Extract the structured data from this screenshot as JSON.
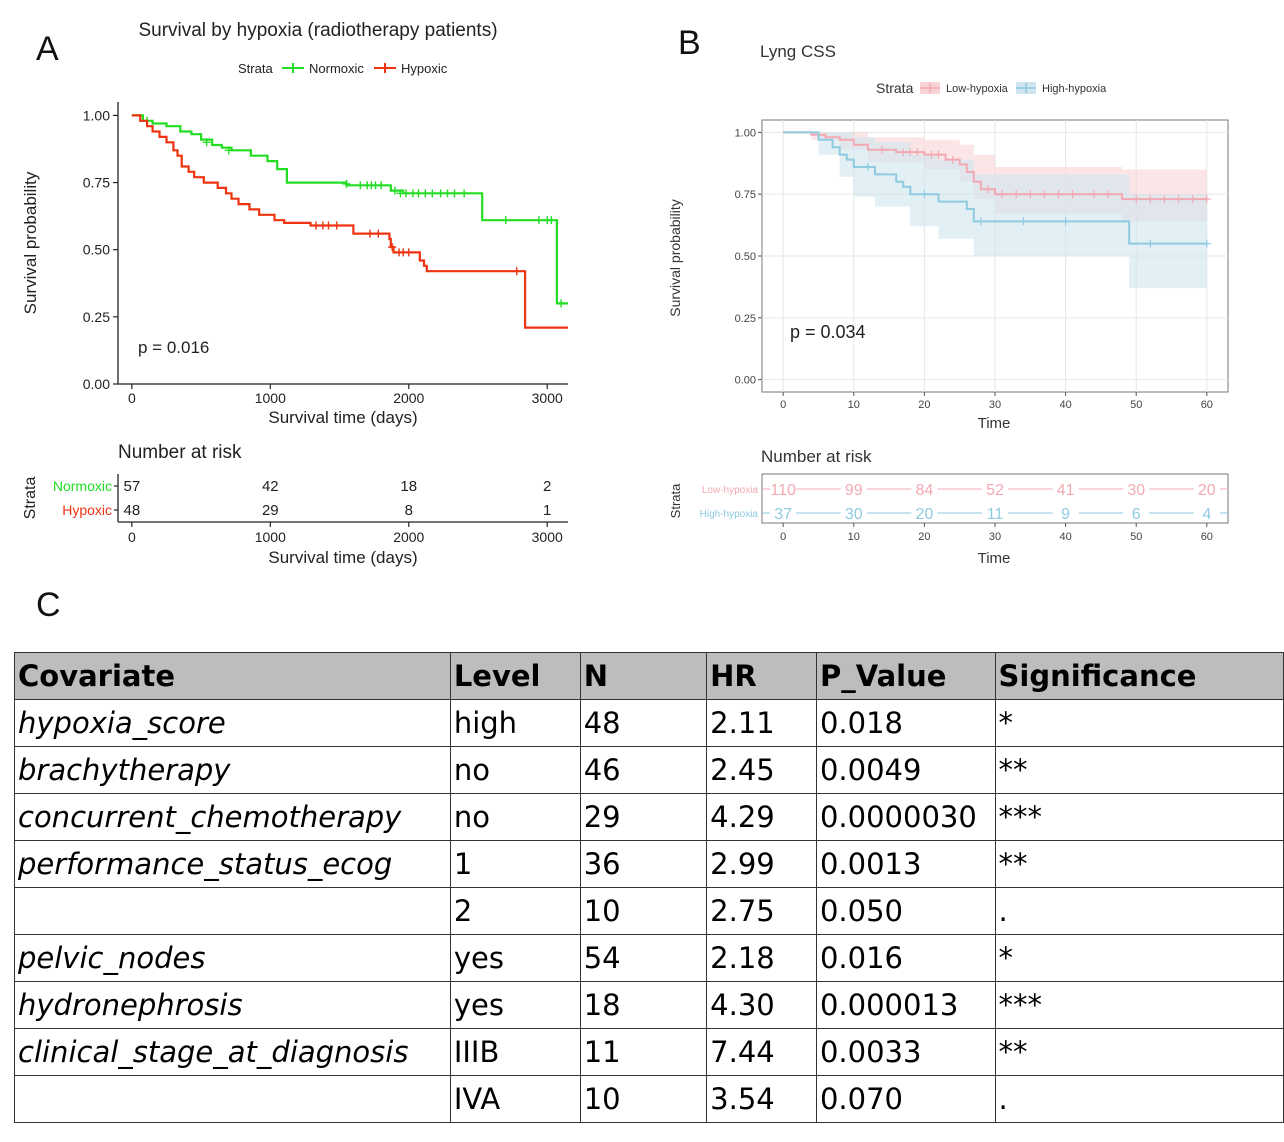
{
  "panels": {
    "a": "A",
    "b": "B",
    "c": "C"
  },
  "colors": {
    "normoxic": "#22dd22",
    "hypoxic": "#ee3311",
    "low_hypoxia": "#f3a9b2",
    "high_hypoxia": "#8ecae0",
    "low_band": "#f8d3d6",
    "high_band": "#cfe6f0"
  },
  "chart_data": [
    {
      "type": "line",
      "id": "A",
      "title": "Survival by hypoxia (radiotherapy patients)",
      "legend_title": "Strata",
      "legend_position": "top",
      "xlabel": "Survival time (days)",
      "ylabel": "Survival probability",
      "xlim": [
        -100,
        3150
      ],
      "ylim": [
        0,
        1.05
      ],
      "x_ticks": [
        0,
        1000,
        2000,
        3000
      ],
      "x_tick_labels": [
        "0",
        "1000",
        "2000",
        "3000"
      ],
      "y_ticks": [
        0,
        0.25,
        0.5,
        0.75,
        1
      ],
      "y_tick_labels": [
        "0.00",
        "0.25",
        "0.50",
        "0.75",
        "1.00"
      ],
      "annotation": "p = 0.016",
      "series": [
        {
          "name": "Normoxic",
          "color": "#22dd22",
          "steps": [
            [
              0,
              1.0
            ],
            [
              80,
              0.98
            ],
            [
              150,
              0.97
            ],
            [
              250,
              0.96
            ],
            [
              350,
              0.94
            ],
            [
              430,
              0.93
            ],
            [
              500,
              0.91
            ],
            [
              580,
              0.89
            ],
            [
              650,
              0.88
            ],
            [
              720,
              0.87
            ],
            [
              860,
              0.85
            ],
            [
              980,
              0.83
            ],
            [
              1050,
              0.8
            ],
            [
              1120,
              0.78
            ],
            [
              1120,
              0.75
            ],
            [
              1550,
              0.75
            ],
            [
              1550,
              0.74
            ],
            [
              1830,
              0.74
            ],
            [
              1870,
              0.72
            ],
            [
              1960,
              0.71
            ],
            [
              2530,
              0.71
            ],
            [
              2530,
              0.61
            ],
            [
              3040,
              0.61
            ],
            [
              3070,
              0.3
            ],
            [
              3150,
              0.3
            ]
          ],
          "censors": [
            [
              110,
              0.98
            ],
            [
              540,
              0.9
            ],
            [
              700,
              0.87
            ],
            [
              1550,
              0.745
            ],
            [
              1650,
              0.74
            ],
            [
              1700,
              0.74
            ],
            [
              1730,
              0.74
            ],
            [
              1760,
              0.74
            ],
            [
              1800,
              0.74
            ],
            [
              1900,
              0.72
            ],
            [
              1940,
              0.71
            ],
            [
              1980,
              0.71
            ],
            [
              2030,
              0.71
            ],
            [
              2070,
              0.71
            ],
            [
              2120,
              0.71
            ],
            [
              2170,
              0.71
            ],
            [
              2230,
              0.71
            ],
            [
              2280,
              0.71
            ],
            [
              2330,
              0.71
            ],
            [
              2400,
              0.71
            ],
            [
              2700,
              0.61
            ],
            [
              2940,
              0.61
            ],
            [
              3000,
              0.61
            ],
            [
              3030,
              0.61
            ],
            [
              3100,
              0.3
            ]
          ]
        },
        {
          "name": "Hypoxic",
          "color": "#ee3311",
          "steps": [
            [
              0,
              1.0
            ],
            [
              60,
              0.98
            ],
            [
              110,
              0.96
            ],
            [
              150,
              0.94
            ],
            [
              200,
              0.92
            ],
            [
              250,
              0.9
            ],
            [
              300,
              0.87
            ],
            [
              330,
              0.85
            ],
            [
              360,
              0.81
            ],
            [
              410,
              0.79
            ],
            [
              450,
              0.77
            ],
            [
              520,
              0.75
            ],
            [
              620,
              0.73
            ],
            [
              680,
              0.71
            ],
            [
              720,
              0.69
            ],
            [
              770,
              0.67
            ],
            [
              850,
              0.65
            ],
            [
              920,
              0.63
            ],
            [
              1030,
              0.61
            ],
            [
              1100,
              0.6
            ],
            [
              1270,
              0.6
            ],
            [
              1290,
              0.59
            ],
            [
              1560,
              0.59
            ],
            [
              1600,
              0.56
            ],
            [
              1830,
              0.56
            ],
            [
              1860,
              0.54
            ],
            [
              1870,
              0.51
            ],
            [
              1890,
              0.49
            ],
            [
              2050,
              0.49
            ],
            [
              2080,
              0.46
            ],
            [
              2110,
              0.44
            ],
            [
              2130,
              0.42
            ],
            [
              2820,
              0.42
            ],
            [
              2840,
              0.21
            ],
            [
              3150,
              0.21
            ]
          ],
          "censors": [
            [
              1330,
              0.59
            ],
            [
              1380,
              0.59
            ],
            [
              1420,
              0.59
            ],
            [
              1480,
              0.59
            ],
            [
              1720,
              0.56
            ],
            [
              1780,
              0.56
            ],
            [
              1880,
              0.51
            ],
            [
              1930,
              0.49
            ],
            [
              1960,
              0.49
            ],
            [
              2000,
              0.49
            ],
            [
              2780,
              0.42
            ]
          ]
        }
      ],
      "risk_table": {
        "title": "Number at risk",
        "ylabel": "Strata",
        "xlabel": "Survival time (days)",
        "times": [
          0,
          1000,
          2000,
          3000
        ],
        "rows": [
          {
            "name": "Normoxic",
            "counts": [
              "57",
              "42",
              "18",
              "2"
            ]
          },
          {
            "name": "Hypoxic",
            "counts": [
              "48",
              "29",
              "8",
              "1"
            ]
          }
        ]
      }
    },
    {
      "type": "line",
      "id": "B",
      "title": "Lyng CSS",
      "legend_title": "Strata",
      "legend_position": "top",
      "xlabel": "Time",
      "ylabel": "Survival probability",
      "xlim": [
        -3,
        63
      ],
      "ylim": [
        -0.05,
        1.05
      ],
      "x_ticks": [
        0,
        10,
        20,
        30,
        40,
        50,
        60
      ],
      "x_tick_labels": [
        "0",
        "10",
        "20",
        "30",
        "40",
        "50",
        "60"
      ],
      "y_ticks": [
        0,
        0.25,
        0.5,
        0.75,
        1
      ],
      "y_tick_labels": [
        "0.00",
        "0.25",
        "0.50",
        "0.75",
        "1.00"
      ],
      "grid": true,
      "annotation": "p = 0.034",
      "series": [
        {
          "name": "Low-hypoxia",
          "color": "#f3a9b2",
          "band_color": "#f8d3d6",
          "steps": [
            [
              0,
              1.0
            ],
            [
              3,
              1.0
            ],
            [
              4,
              0.99
            ],
            [
              6,
              0.98
            ],
            [
              8,
              0.97
            ],
            [
              10,
              0.95
            ],
            [
              12,
              0.93
            ],
            [
              16,
              0.92
            ],
            [
              20,
              0.91
            ],
            [
              23,
              0.89
            ],
            [
              25,
              0.87
            ],
            [
              26,
              0.84
            ],
            [
              27,
              0.8
            ],
            [
              28,
              0.77
            ],
            [
              30,
              0.75
            ],
            [
              47,
              0.75
            ],
            [
              48,
              0.73
            ],
            [
              60,
              0.73
            ]
          ],
          "upper": [
            [
              0,
              1.0
            ],
            [
              4,
              1.0
            ],
            [
              8,
              1.0
            ],
            [
              12,
              0.98
            ],
            [
              20,
              0.97
            ],
            [
              25,
              0.95
            ],
            [
              27,
              0.91
            ],
            [
              30,
              0.86
            ],
            [
              48,
              0.85
            ],
            [
              60,
              0.84
            ]
          ],
          "lower": [
            [
              0,
              1.0
            ],
            [
              4,
              0.97
            ],
            [
              8,
              0.93
            ],
            [
              12,
              0.88
            ],
            [
              20,
              0.85
            ],
            [
              25,
              0.8
            ],
            [
              27,
              0.73
            ],
            [
              30,
              0.67
            ],
            [
              48,
              0.64
            ],
            [
              60,
              0.62
            ]
          ],
          "censors": [
            [
              14,
              0.93
            ],
            [
              17,
              0.92
            ],
            [
              18,
              0.92
            ],
            [
              19,
              0.92
            ],
            [
              21,
              0.91
            ],
            [
              22,
              0.91
            ],
            [
              24,
              0.89
            ],
            [
              29,
              0.77
            ],
            [
              31,
              0.75
            ],
            [
              33,
              0.75
            ],
            [
              35,
              0.75
            ],
            [
              37,
              0.75
            ],
            [
              39,
              0.75
            ],
            [
              41,
              0.75
            ],
            [
              44,
              0.75
            ],
            [
              46,
              0.75
            ],
            [
              50,
              0.73
            ],
            [
              52,
              0.73
            ],
            [
              54,
              0.73
            ],
            [
              56,
              0.73
            ],
            [
              58,
              0.73
            ],
            [
              60,
              0.73
            ]
          ]
        },
        {
          "name": "High-hypoxia",
          "color": "#8ecae0",
          "band_color": "#cfe6f0",
          "steps": [
            [
              0,
              1.0
            ],
            [
              3,
              1.0
            ],
            [
              5,
              0.97
            ],
            [
              7,
              0.94
            ],
            [
              8,
              0.91
            ],
            [
              9,
              0.89
            ],
            [
              10,
              0.86
            ],
            [
              13,
              0.83
            ],
            [
              16,
              0.8
            ],
            [
              17,
              0.78
            ],
            [
              18,
              0.75
            ],
            [
              22,
              0.72
            ],
            [
              26,
              0.69
            ],
            [
              27,
              0.64
            ],
            [
              48,
              0.64
            ],
            [
              49,
              0.55
            ],
            [
              60,
              0.55
            ]
          ],
          "upper": [
            [
              0,
              1.0
            ],
            [
              5,
              1.0
            ],
            [
              8,
              1.0
            ],
            [
              10,
              0.98
            ],
            [
              13,
              0.96
            ],
            [
              18,
              0.91
            ],
            [
              22,
              0.89
            ],
            [
              27,
              0.83
            ],
            [
              48,
              0.83
            ],
            [
              49,
              0.75
            ],
            [
              60,
              0.75
            ]
          ],
          "lower": [
            [
              0,
              1.0
            ],
            [
              5,
              0.91
            ],
            [
              8,
              0.82
            ],
            [
              10,
              0.74
            ],
            [
              13,
              0.7
            ],
            [
              18,
              0.62
            ],
            [
              22,
              0.57
            ],
            [
              27,
              0.5
            ],
            [
              48,
              0.5
            ],
            [
              49,
              0.37
            ],
            [
              60,
              0.37
            ]
          ],
          "censors": [
            [
              12,
              0.86
            ],
            [
              20,
              0.75
            ],
            [
              28,
              0.64
            ],
            [
              34,
              0.64
            ],
            [
              40,
              0.64
            ],
            [
              52,
              0.55
            ],
            [
              60,
              0.55
            ]
          ]
        }
      ],
      "risk_table": {
        "title": "Number at risk",
        "ylabel": "Strata",
        "xlabel": "Time",
        "times": [
          0,
          10,
          20,
          30,
          40,
          50,
          60
        ],
        "rows": [
          {
            "name": "Low-hypoxia",
            "counts": [
              "110",
              "99",
              "84",
              "52",
              "41",
              "30",
              "20"
            ]
          },
          {
            "name": "High-hypoxia",
            "counts": [
              "37",
              "30",
              "20",
              "11",
              "9",
              "6",
              "4"
            ]
          }
        ]
      }
    },
    {
      "type": "table",
      "id": "C",
      "columns": [
        "Covariate",
        "Level",
        "N",
        "HR",
        "P_Value",
        "Significance"
      ],
      "rows": [
        [
          "hypoxia_score",
          "high",
          "48",
          "2.11",
          "0.018",
          "*"
        ],
        [
          "brachytherapy",
          "no",
          "46",
          "2.45",
          "0.0049",
          "**"
        ],
        [
          "concurrent_chemotherapy",
          "no",
          "29",
          "4.29",
          "0.0000030",
          "***"
        ],
        [
          "performance_status_ecog",
          "1",
          "36",
          "2.99",
          "0.0013",
          "**"
        ],
        [
          "",
          "2",
          "10",
          "2.75",
          "0.050",
          "."
        ],
        [
          "pelvic_nodes",
          "yes",
          "54",
          "2.18",
          "0.016",
          "*"
        ],
        [
          "hydronephrosis",
          "yes",
          "18",
          "4.30",
          "0.000013",
          "***"
        ],
        [
          "clinical_stage_at_diagnosis",
          "IIIB",
          "11",
          "7.44",
          "0.0033",
          "**"
        ],
        [
          "",
          "IVA",
          "10",
          "3.54",
          "0.070",
          "."
        ]
      ]
    }
  ]
}
